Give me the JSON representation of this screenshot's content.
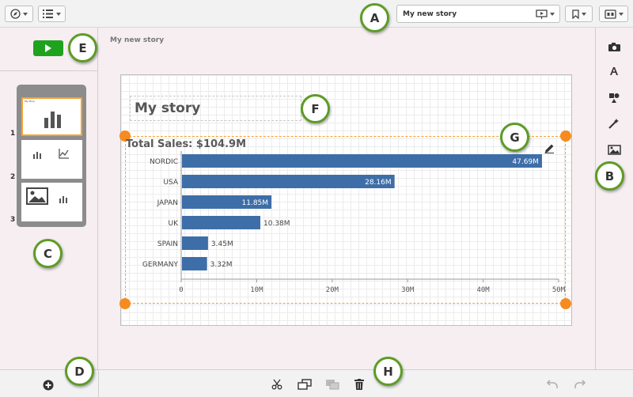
{
  "toolbar": {
    "story_name": "My new story"
  },
  "breadcrumb": {
    "story_label": "My new story"
  },
  "thumbnails": [
    {
      "number": "1",
      "mini_title": "My story"
    },
    {
      "number": "2"
    },
    {
      "number": "3"
    }
  ],
  "slide": {
    "title": "My story",
    "chart_title": "Total Sales: $104.9M"
  },
  "chart_data": {
    "type": "bar",
    "orientation": "horizontal",
    "title": "Total Sales: $104.9M",
    "categories": [
      "NORDIC",
      "USA",
      "JAPAN",
      "UK",
      "SPAIN",
      "GERMANY"
    ],
    "values": [
      47.69,
      28.16,
      11.85,
      10.38,
      3.45,
      3.32
    ],
    "value_labels": [
      "47.69M",
      "28.16M",
      "11.85M",
      "10.38M",
      "3.45M",
      "3.32M"
    ],
    "xticks": [
      "0",
      "10M",
      "20M",
      "30M",
      "40M",
      "50M"
    ],
    "xlim": [
      0,
      50
    ],
    "bar_color": "#3e6ea8",
    "grid": true
  },
  "callouts": {
    "a": "A",
    "b": "B",
    "c": "C",
    "d": "D",
    "e": "E",
    "f": "F",
    "g": "G",
    "h": "H"
  },
  "icons": {
    "toolbar": [
      "compass-icon",
      "list-icon",
      "present-icon",
      "bookmark-icon",
      "storyboard-icon"
    ],
    "right_tools": [
      "camera-icon",
      "text-icon",
      "shapes-icon",
      "effects-icon",
      "media-icon"
    ],
    "bottom": [
      "add-icon",
      "cut-icon",
      "duplicate-icon",
      "layer-icon",
      "trash-icon",
      "undo-icon",
      "redo-icon"
    ]
  },
  "colors": {
    "accent_orange": "#f68b1f",
    "play_green": "#1fa31f",
    "callout_border": "#5c9c25"
  }
}
